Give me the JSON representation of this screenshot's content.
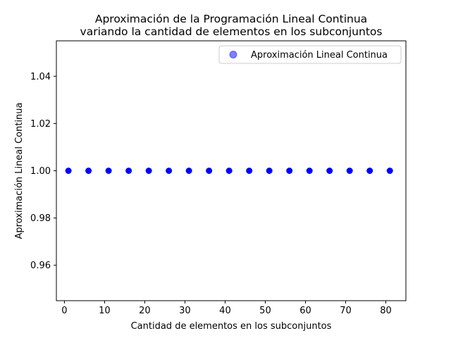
{
  "chart_data": {
    "type": "scatter",
    "title": "Aproximación de la Programación Lineal Continua\nvariando la cantidad de elementos en los subconjuntos",
    "title_lines": [
      "Aproximación de la Programación Lineal Continua",
      "variando la cantidad de elementos en los subconjuntos"
    ],
    "xlabel": "Cantidad de elementos en los subconjuntos",
    "ylabel": "Aproximación Lineal Continua",
    "xlim": [
      -2.0,
      85.0
    ],
    "ylim": [
      0.945,
      1.055
    ],
    "xticks": [
      0,
      10,
      20,
      30,
      40,
      50,
      60,
      70,
      80
    ],
    "yticks": [
      0.96,
      0.98,
      1.0,
      1.02,
      1.04
    ],
    "ytick_labels": [
      "0.96",
      "0.98",
      "1.00",
      "1.02",
      "1.04"
    ],
    "grid": false,
    "legend_position": "top-right",
    "series": [
      {
        "name": "Aproximación Lineal Continua",
        "color": "#0000ff",
        "x": [
          1,
          6,
          11,
          16,
          21,
          26,
          31,
          36,
          41,
          46,
          51,
          56,
          61,
          66,
          71,
          76,
          81
        ],
        "y": [
          1.0,
          1.0,
          1.0,
          1.0,
          1.0,
          1.0,
          1.0,
          1.0,
          1.0,
          1.0,
          1.0,
          1.0,
          1.0,
          1.0,
          1.0,
          1.0,
          1.0
        ]
      }
    ]
  }
}
